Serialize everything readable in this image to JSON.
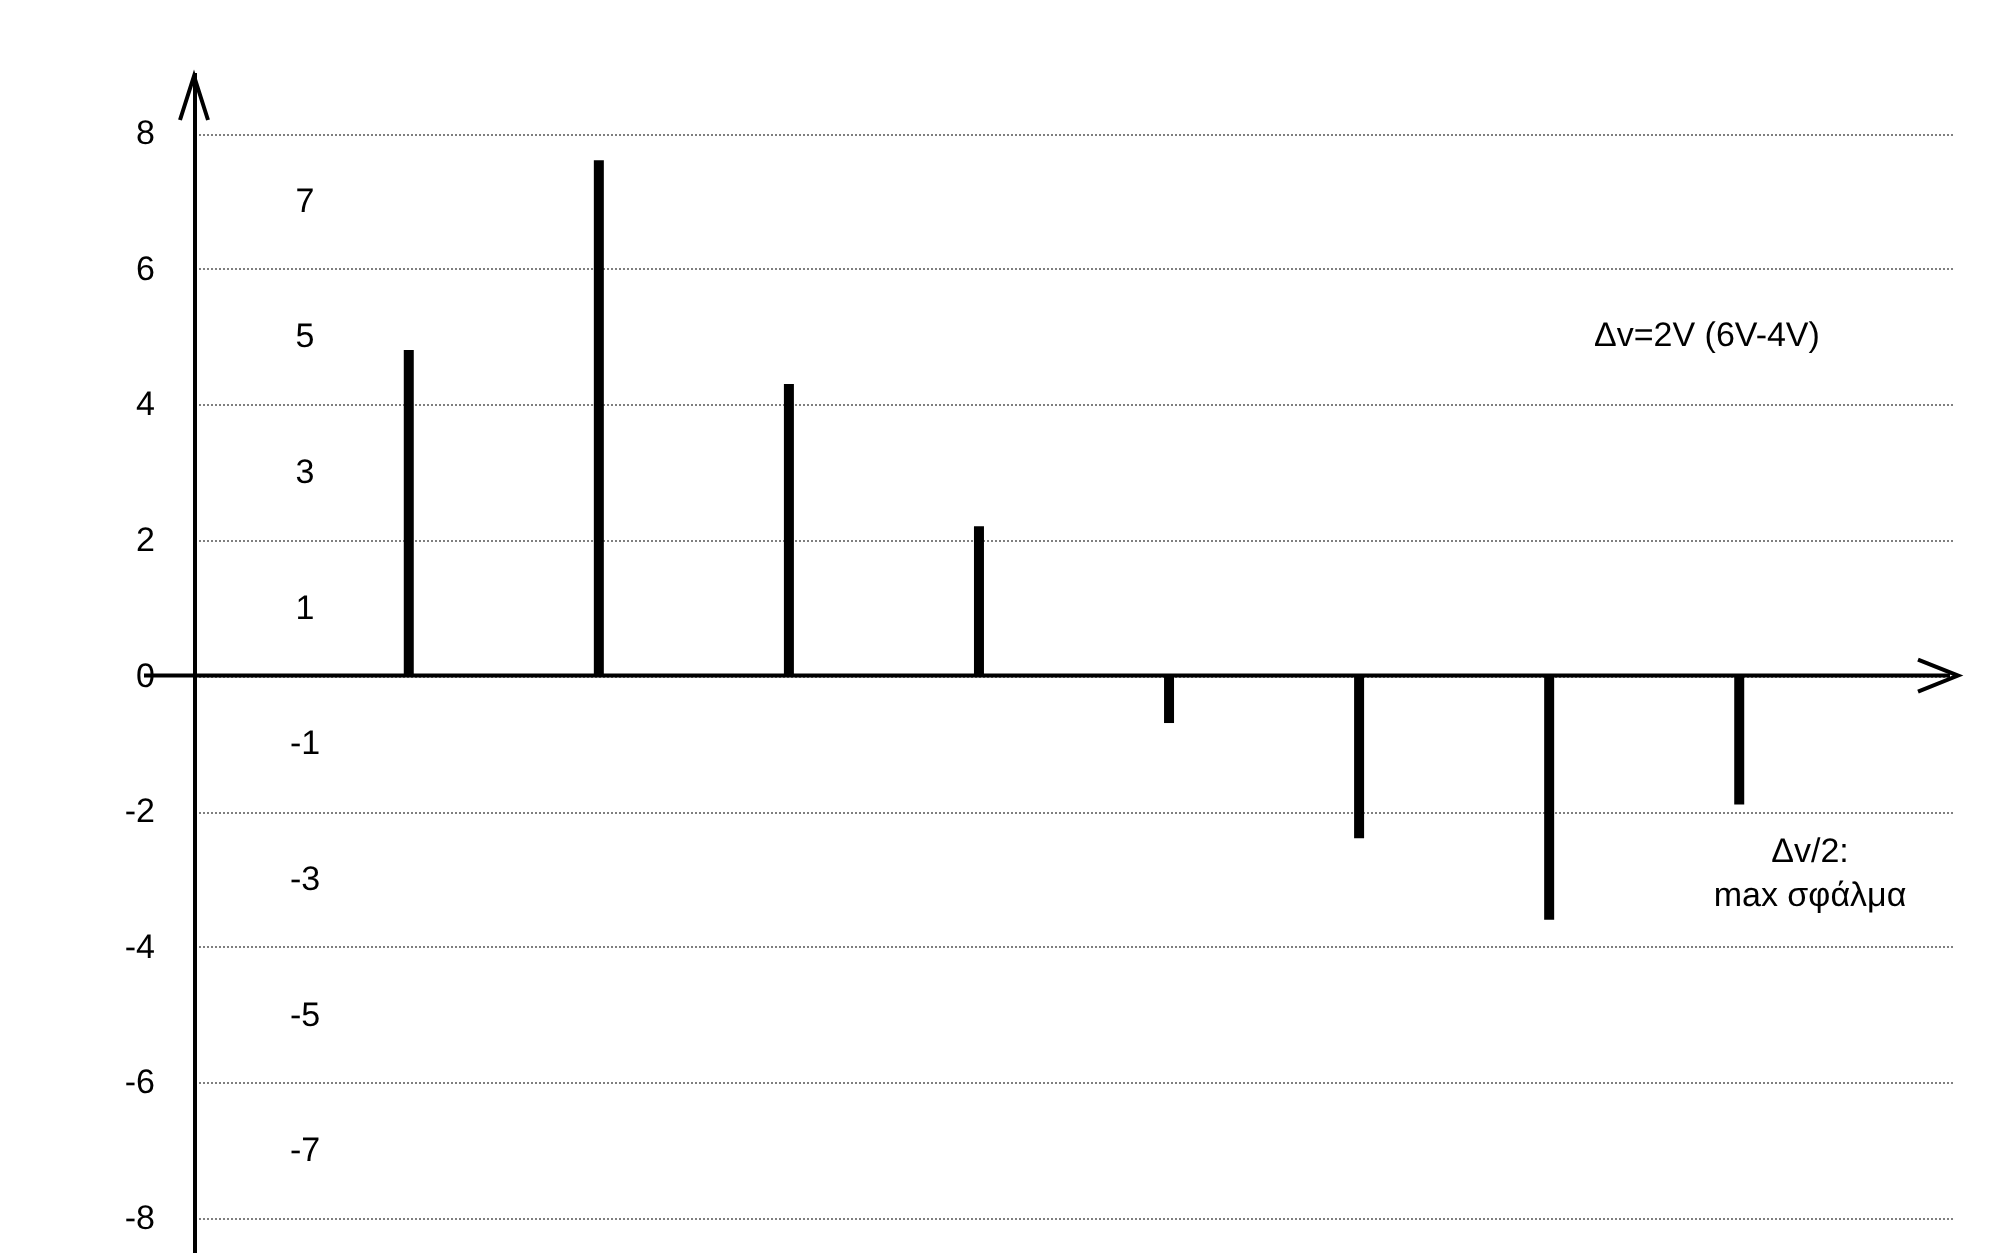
{
  "chart_data": {
    "type": "bar",
    "categories": [
      null,
      null,
      null,
      null,
      null,
      null,
      null,
      null
    ],
    "values": [
      4.8,
      7.6,
      4.3,
      2.2,
      -0.7,
      -2.4,
      -3.6,
      -1.9
    ],
    "color": "#000000",
    "ylim": [
      -8.5,
      8.9
    ],
    "yticks": [
      -8,
      -6,
      -4,
      -2,
      0,
      2,
      4,
      6,
      8
    ],
    "grid": "y",
    "tick_labels": "y",
    "y2lim": [
      -8.5,
      8.9
    ],
    "y2ticks": [
      -7,
      -5,
      -3,
      -1,
      1,
      3,
      5,
      7
    ],
    "annotations": [
      "Δv=2V (6V-4V)",
      "Δv/2:\nmax σφάλμα"
    ]
  }
}
